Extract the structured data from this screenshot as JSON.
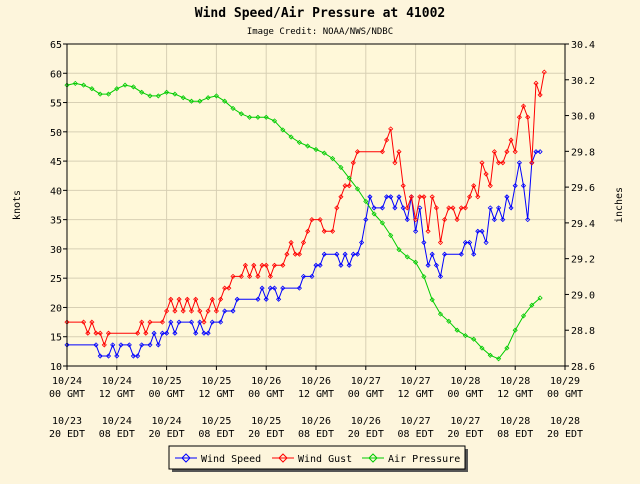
{
  "chart_data": {
    "type": "line",
    "title": "Wind Speed/Air Pressure at 41002",
    "subtitle": "Image Credit: NOAA/NWS/NDBC",
    "ylabel_left": "knots",
    "ylabel_right": "inches",
    "ylim_left": [
      10,
      65
    ],
    "yticks_left": [
      "10",
      "15",
      "20",
      "25",
      "30",
      "35",
      "40",
      "45",
      "50",
      "55",
      "60",
      "65"
    ],
    "ylim_right": [
      28.6,
      30.4
    ],
    "yticks_right": [
      "28.6",
      "28.8",
      "29.0",
      "29.2",
      "29.4",
      "29.6",
      "29.8",
      "30.0",
      "30.2",
      "30.4"
    ],
    "xlim_hours": [
      0,
      120
    ],
    "xticks_hours": [
      0,
      12,
      24,
      36,
      48,
      60,
      72,
      84,
      96,
      108,
      120
    ],
    "xticks_gmt": [
      [
        "10/24",
        "00 GMT"
      ],
      [
        "10/24",
        "12 GMT"
      ],
      [
        "10/25",
        "00 GMT"
      ],
      [
        "10/25",
        "12 GMT"
      ],
      [
        "10/26",
        "00 GMT"
      ],
      [
        "10/26",
        "12 GMT"
      ],
      [
        "10/27",
        "00 GMT"
      ],
      [
        "10/27",
        "12 GMT"
      ],
      [
        "10/28",
        "00 GMT"
      ],
      [
        "10/28",
        "12 GMT"
      ],
      [
        "10/29",
        "00 GMT"
      ]
    ],
    "xticks_edt": [
      [
        "10/23",
        "20 EDT"
      ],
      [
        "10/24",
        "08 EDT"
      ],
      [
        "10/24",
        "20 EDT"
      ],
      [
        "10/25",
        "08 EDT"
      ],
      [
        "10/25",
        "20 EDT"
      ],
      [
        "10/26",
        "08 EDT"
      ],
      [
        "10/26",
        "20 EDT"
      ],
      [
        "10/27",
        "08 EDT"
      ],
      [
        "10/27",
        "20 EDT"
      ],
      [
        "10/28",
        "08 EDT"
      ],
      [
        "10/28",
        "20 EDT"
      ]
    ],
    "legend": [
      "Wind Speed",
      "Wind Gust",
      "Air Pressure"
    ],
    "series": [
      {
        "name": "Wind Speed",
        "axis": "left",
        "color": "#0000ff",
        "points": [
          [
            0,
            13.6
          ],
          [
            7,
            13.6
          ],
          [
            8,
            11.7
          ],
          [
            10,
            11.7
          ],
          [
            11,
            13.6
          ],
          [
            12,
            11.7
          ],
          [
            13,
            13.6
          ],
          [
            15,
            13.6
          ],
          [
            16,
            11.7
          ],
          [
            17,
            11.7
          ],
          [
            18,
            13.6
          ],
          [
            20,
            13.6
          ],
          [
            21,
            15.6
          ],
          [
            22,
            13.6
          ],
          [
            23,
            15.6
          ],
          [
            24,
            15.6
          ],
          [
            25,
            17.5
          ],
          [
            26,
            15.6
          ],
          [
            27,
            17.5
          ],
          [
            30,
            17.5
          ],
          [
            31,
            15.6
          ],
          [
            32,
            17.5
          ],
          [
            33,
            15.6
          ],
          [
            34,
            15.6
          ],
          [
            35,
            17.5
          ],
          [
            37,
            17.5
          ],
          [
            38,
            19.4
          ],
          [
            40,
            19.4
          ],
          [
            41,
            21.4
          ],
          [
            46,
            21.4
          ],
          [
            47,
            23.3
          ],
          [
            48,
            21.4
          ],
          [
            49,
            23.3
          ],
          [
            50,
            23.3
          ],
          [
            51,
            21.4
          ],
          [
            52,
            23.3
          ],
          [
            56,
            23.3
          ],
          [
            57,
            25.3
          ],
          [
            59,
            25.3
          ],
          [
            60,
            27.2
          ],
          [
            61,
            27.2
          ],
          [
            62,
            29.1
          ],
          [
            65,
            29.1
          ],
          [
            66,
            27.2
          ],
          [
            67,
            29.1
          ],
          [
            68,
            27.2
          ],
          [
            69,
            29.1
          ],
          [
            70,
            29.1
          ],
          [
            71,
            31.1
          ],
          [
            72,
            35.0
          ],
          [
            73,
            38.9
          ],
          [
            74,
            37.0
          ],
          [
            76,
            37.0
          ],
          [
            77,
            38.9
          ],
          [
            78,
            38.9
          ],
          [
            79,
            37.0
          ],
          [
            80,
            38.9
          ],
          [
            81,
            37.0
          ],
          [
            82,
            35.0
          ],
          [
            83,
            38.9
          ],
          [
            84,
            33.0
          ],
          [
            85,
            37.0
          ],
          [
            86,
            31.1
          ],
          [
            87,
            27.2
          ],
          [
            88,
            29.1
          ],
          [
            89,
            27.2
          ],
          [
            90,
            25.3
          ],
          [
            91,
            29.1
          ],
          [
            95,
            29.1
          ],
          [
            96,
            31.1
          ],
          [
            97,
            31.1
          ],
          [
            98,
            29.1
          ],
          [
            99,
            33.0
          ],
          [
            100,
            33.0
          ],
          [
            101,
            31.1
          ],
          [
            102,
            37.0
          ],
          [
            103,
            35.0
          ],
          [
            104,
            37.0
          ],
          [
            105,
            35.0
          ],
          [
            106,
            38.9
          ],
          [
            107,
            37.0
          ],
          [
            108,
            40.8
          ],
          [
            109,
            44.7
          ],
          [
            110,
            40.8
          ],
          [
            111,
            35.0
          ],
          [
            112,
            44.7
          ],
          [
            113,
            46.6
          ],
          [
            114,
            46.6
          ]
        ]
      },
      {
        "name": "Wind Gust",
        "axis": "left",
        "color": "#ff0000",
        "points": [
          [
            0,
            17.5
          ],
          [
            4,
            17.5
          ],
          [
            5,
            15.6
          ],
          [
            6,
            17.5
          ],
          [
            7,
            15.6
          ],
          [
            8,
            15.6
          ],
          [
            9,
            13.6
          ],
          [
            10,
            15.6
          ],
          [
            17,
            15.6
          ],
          [
            18,
            17.5
          ],
          [
            19,
            15.6
          ],
          [
            20,
            17.5
          ],
          [
            23,
            17.5
          ],
          [
            24,
            19.4
          ],
          [
            25,
            21.4
          ],
          [
            26,
            19.4
          ],
          [
            27,
            21.4
          ],
          [
            28,
            19.4
          ],
          [
            29,
            21.4
          ],
          [
            30,
            19.4
          ],
          [
            31,
            21.4
          ],
          [
            32,
            19.4
          ],
          [
            33,
            17.5
          ],
          [
            34,
            19.4
          ],
          [
            35,
            21.4
          ],
          [
            36,
            19.4
          ],
          [
            37,
            21.4
          ],
          [
            38,
            23.3
          ],
          [
            39,
            23.3
          ],
          [
            40,
            25.3
          ],
          [
            42,
            25.3
          ],
          [
            43,
            27.2
          ],
          [
            44,
            25.3
          ],
          [
            45,
            27.2
          ],
          [
            46,
            25.3
          ],
          [
            47,
            27.2
          ],
          [
            48,
            27.2
          ],
          [
            49,
            25.3
          ],
          [
            50,
            27.2
          ],
          [
            52,
            27.2
          ],
          [
            53,
            29.1
          ],
          [
            54,
            31.1
          ],
          [
            55,
            29.1
          ],
          [
            56,
            29.1
          ],
          [
            57,
            31.1
          ],
          [
            58,
            33.0
          ],
          [
            59,
            35.0
          ],
          [
            61,
            35.0
          ],
          [
            62,
            33.0
          ],
          [
            64,
            33.0
          ],
          [
            65,
            37.0
          ],
          [
            66,
            38.9
          ],
          [
            67,
            40.8
          ],
          [
            68,
            40.8
          ],
          [
            69,
            44.7
          ],
          [
            70,
            46.6
          ],
          [
            76,
            46.6
          ],
          [
            77,
            48.6
          ],
          [
            78,
            50.5
          ],
          [
            79,
            44.7
          ],
          [
            80,
            46.6
          ],
          [
            81,
            40.8
          ],
          [
            82,
            37.0
          ],
          [
            83,
            38.9
          ],
          [
            84,
            35.0
          ],
          [
            85,
            38.9
          ],
          [
            86,
            38.9
          ],
          [
            87,
            33.0
          ],
          [
            88,
            38.9
          ],
          [
            89,
            37.0
          ],
          [
            90,
            31.1
          ],
          [
            91,
            35.0
          ],
          [
            92,
            37.0
          ],
          [
            93,
            37.0
          ],
          [
            94,
            35.0
          ],
          [
            95,
            37.0
          ],
          [
            96,
            37.0
          ],
          [
            97,
            38.9
          ],
          [
            98,
            40.8
          ],
          [
            99,
            38.9
          ],
          [
            100,
            44.7
          ],
          [
            101,
            42.8
          ],
          [
            102,
            40.8
          ],
          [
            103,
            46.6
          ],
          [
            104,
            44.7
          ],
          [
            105,
            44.7
          ],
          [
            106,
            46.6
          ],
          [
            107,
            48.6
          ],
          [
            108,
            46.6
          ],
          [
            109,
            52.5
          ],
          [
            110,
            54.4
          ],
          [
            111,
            52.5
          ],
          [
            112,
            44.7
          ],
          [
            113,
            58.3
          ],
          [
            114,
            56.3
          ],
          [
            115,
            60.2
          ]
        ]
      },
      {
        "name": "Air Pressure",
        "axis": "right",
        "color": "#00cc00",
        "points": [
          [
            0,
            30.17
          ],
          [
            2,
            30.18
          ],
          [
            4,
            30.17
          ],
          [
            6,
            30.15
          ],
          [
            8,
            30.12
          ],
          [
            10,
            30.12
          ],
          [
            12,
            30.15
          ],
          [
            14,
            30.17
          ],
          [
            16,
            30.16
          ],
          [
            18,
            30.13
          ],
          [
            20,
            30.11
          ],
          [
            22,
            30.11
          ],
          [
            24,
            30.13
          ],
          [
            26,
            30.12
          ],
          [
            28,
            30.1
          ],
          [
            30,
            30.08
          ],
          [
            32,
            30.08
          ],
          [
            34,
            30.1
          ],
          [
            36,
            30.11
          ],
          [
            38,
            30.08
          ],
          [
            40,
            30.04
          ],
          [
            42,
            30.01
          ],
          [
            44,
            29.99
          ],
          [
            46,
            29.99
          ],
          [
            48,
            29.99
          ],
          [
            50,
            29.97
          ],
          [
            52,
            29.92
          ],
          [
            54,
            29.88
          ],
          [
            56,
            29.85
          ],
          [
            58,
            29.83
          ],
          [
            60,
            29.81
          ],
          [
            62,
            29.79
          ],
          [
            64,
            29.76
          ],
          [
            66,
            29.71
          ],
          [
            68,
            29.65
          ],
          [
            70,
            29.59
          ],
          [
            72,
            29.52
          ],
          [
            74,
            29.45
          ],
          [
            76,
            29.4
          ],
          [
            78,
            29.33
          ],
          [
            80,
            29.25
          ],
          [
            82,
            29.21
          ],
          [
            84,
            29.18
          ],
          [
            86,
            29.1
          ],
          [
            88,
            28.97
          ],
          [
            90,
            28.89
          ],
          [
            92,
            28.85
          ],
          [
            94,
            28.8
          ],
          [
            96,
            28.77
          ],
          [
            98,
            28.75
          ],
          [
            100,
            28.7
          ],
          [
            102,
            28.66
          ],
          [
            104,
            28.64
          ],
          [
            106,
            28.7
          ],
          [
            108,
            28.8
          ],
          [
            110,
            28.88
          ],
          [
            112,
            28.94
          ],
          [
            114,
            28.98
          ]
        ]
      }
    ]
  }
}
